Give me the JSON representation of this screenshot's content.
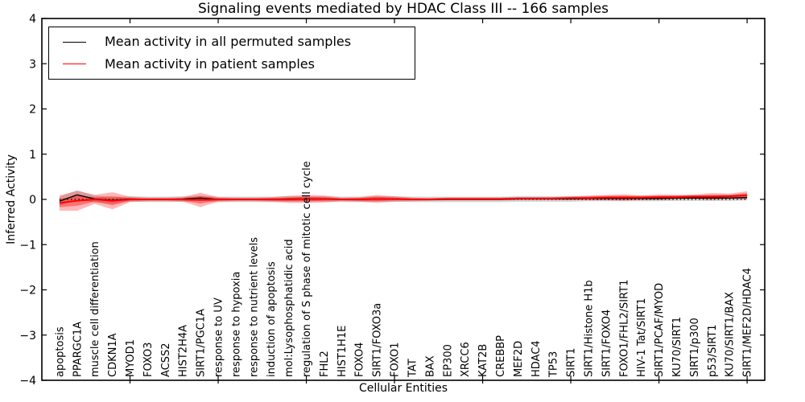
{
  "figure": {
    "title": "Signaling events mediated by HDAC Class III -- 166 samples"
  },
  "legend": {
    "permuted_label": "Mean activity in all permuted samples",
    "patient_label": "Mean activity in patient samples",
    "permuted_color": "#000000",
    "patient_color": "#ff0000"
  },
  "chart_data": {
    "type": "line",
    "title": "Signaling events mediated by HDAC Class III -- 166 samples",
    "xlabel": "Cellular Entities",
    "ylabel": "Inferred Activity",
    "ylim": [
      -4,
      4
    ],
    "xlim": [
      0,
      41
    ],
    "yticks": [
      4,
      3,
      2,
      1,
      0,
      -1,
      -2,
      -3,
      -4
    ],
    "xtick_major_every": 5,
    "grid": false,
    "legend_position": "upper left",
    "zero_line_style": "dotted",
    "band_colors": {
      "permuted_band": "rgba(130,130,130,0.35)",
      "patient_band_outer": "rgba(255,0,0,0.28)",
      "patient_band_inner": "rgba(255,0,0,0.38)"
    },
    "categories": [
      "apoptosis",
      "PPARGC1A",
      "muscle cell differentiation",
      "CDKN1A",
      "MYOD1",
      "FOXO3",
      "ACSS2",
      "HIST2H4A",
      "SIRT1/PGC1A",
      "response to UV",
      "response to hypoxia",
      "response to nutrient levels",
      "induction of apoptosis",
      "mol:Lysophosphatidic acid",
      "regulation of S phase of mitotic cell cycle",
      "FHL2",
      "HIST1H1E",
      "FOXO4",
      "SIRT1/FOXO3a",
      "FOXO1",
      "TAT",
      "BAX",
      "EP300",
      "XRCC6",
      "KAT2B",
      "CREBBP",
      "MEF2D",
      "HDAC4",
      "TP53",
      "SIRT1",
      "SIRT1/Histone H1b",
      "SIRT1/FOXO4",
      "FOXO1/FHL2/SIRT1",
      "HIV-1 Tat/SIRT1",
      "SIRT1/PCAF/MYOD",
      "KU70/SIRT1",
      "SIRT1/p300",
      "p53/SIRT1",
      "KU70/SIRT1/BAX",
      "SIRT1/MEF2D/HDAC4"
    ],
    "series": [
      {
        "name": "Mean activity in all permuted samples",
        "color": "#000000",
        "style": "solid",
        "values": [
          -0.04,
          0.1,
          0.01,
          -0.02,
          0.01,
          0.0,
          0.0,
          0.01,
          0.03,
          0.0,
          0.0,
          0.0,
          0.0,
          0.01,
          0.01,
          0.01,
          0.0,
          0.0,
          0.01,
          0.01,
          0.0,
          0.0,
          0.0,
          0.0,
          0.0,
          0.0,
          0.01,
          0.01,
          0.01,
          0.01,
          0.02,
          0.02,
          0.02,
          0.02,
          0.02,
          0.03,
          0.03,
          0.03,
          0.03,
          0.04
        ]
      },
      {
        "name": "Mean activity in patient samples",
        "color": "#ff0000",
        "style": "solid",
        "values": [
          -0.08,
          -0.03,
          0.0,
          -0.03,
          0.0,
          0.0,
          0.0,
          0.0,
          -0.01,
          0.0,
          0.0,
          0.0,
          0.0,
          0.0,
          0.01,
          0.01,
          0.0,
          0.0,
          0.01,
          0.01,
          0.0,
          0.0,
          0.01,
          0.01,
          0.01,
          0.01,
          0.02,
          0.02,
          0.02,
          0.03,
          0.03,
          0.04,
          0.04,
          0.04,
          0.05,
          0.05,
          0.06,
          0.06,
          0.07,
          0.09
        ]
      }
    ],
    "bands": [
      {
        "name": "permuted-envelope",
        "center_series": 0,
        "half_widths": [
          0.1,
          0.1,
          0.08,
          0.07,
          0.06,
          0.06,
          0.06,
          0.06,
          0.06,
          0.06,
          0.06,
          0.06,
          0.06,
          0.06,
          0.06,
          0.06,
          0.06,
          0.06,
          0.06,
          0.06,
          0.06,
          0.06,
          0.06,
          0.06,
          0.06,
          0.06,
          0.06,
          0.06,
          0.06,
          0.06,
          0.06,
          0.06,
          0.06,
          0.06,
          0.06,
          0.06,
          0.06,
          0.06,
          0.06,
          0.06
        ]
      },
      {
        "name": "patient-envelope-outer",
        "center_series": 1,
        "half_widths": [
          0.17,
          0.22,
          0.1,
          0.19,
          0.06,
          0.04,
          0.04,
          0.05,
          0.16,
          0.05,
          0.04,
          0.04,
          0.05,
          0.08,
          0.09,
          0.08,
          0.04,
          0.05,
          0.09,
          0.06,
          0.04,
          0.03,
          0.03,
          0.03,
          0.03,
          0.03,
          0.03,
          0.03,
          0.03,
          0.04,
          0.05,
          0.06,
          0.07,
          0.05,
          0.06,
          0.05,
          0.05,
          0.08,
          0.06,
          0.09
        ]
      },
      {
        "name": "patient-envelope-inner",
        "center_series": 1,
        "half_widths": [
          0.09,
          0.11,
          0.05,
          0.1,
          0.03,
          0.02,
          0.02,
          0.03,
          0.08,
          0.03,
          0.02,
          0.02,
          0.03,
          0.04,
          0.05,
          0.04,
          0.02,
          0.03,
          0.05,
          0.03,
          0.02,
          0.02,
          0.02,
          0.02,
          0.02,
          0.02,
          0.02,
          0.02,
          0.02,
          0.02,
          0.03,
          0.03,
          0.04,
          0.03,
          0.03,
          0.03,
          0.03,
          0.04,
          0.03,
          0.05
        ]
      }
    ]
  }
}
